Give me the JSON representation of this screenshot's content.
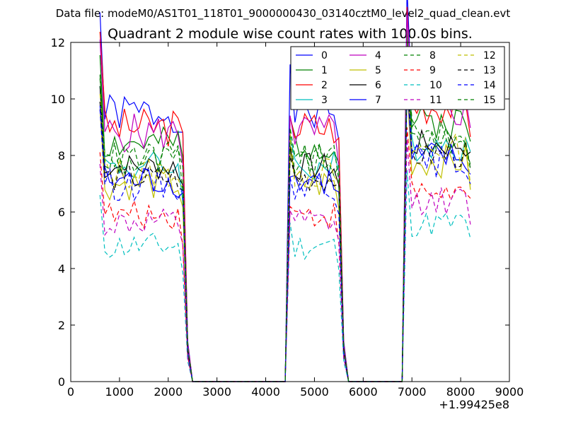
{
  "chart_data": {
    "type": "line",
    "suptitle": "Data file: modeM0/AS1T01_118T01_9000000430_03140cztM0_level2_quad_clean.evt",
    "title": "Quadrant 2 module wise count rates with 100.0s bins.",
    "xlabel": "",
    "ylabel": "",
    "x_offset_label": "+1.99425e8",
    "xlim": [
      0,
      9000
    ],
    "ylim": [
      0,
      12
    ],
    "xticks": [
      "0",
      "1000",
      "2000",
      "3000",
      "4000",
      "5000",
      "6000",
      "7000",
      "8000",
      "9000"
    ],
    "yticks": [
      "0",
      "2",
      "4",
      "6",
      "8",
      "10",
      "12"
    ],
    "grid": false,
    "legend_position": "top-right",
    "x": [
      600,
      700,
      800,
      900,
      1000,
      1100,
      1200,
      1300,
      1400,
      1500,
      1600,
      1700,
      1800,
      1900,
      2000,
      2100,
      2200,
      2300,
      2400,
      2500,
      2600,
      2700,
      2800,
      2900,
      3000,
      3100,
      3200,
      3300,
      3400,
      3500,
      3600,
      3700,
      3800,
      3900,
      4000,
      4100,
      4200,
      4300,
      4400,
      4500,
      4600,
      4700,
      4800,
      4900,
      5000,
      5100,
      5200,
      5300,
      5400,
      5500,
      5600,
      5700,
      5800,
      5900,
      6000,
      6100,
      6200,
      6300,
      6400,
      6500,
      6600,
      6700,
      6800,
      6900,
      7000,
      7100,
      7200,
      7300,
      7400,
      7500,
      7600,
      7700,
      7800,
      7900,
      8000,
      8100,
      8200
    ],
    "series": [
      {
        "name": "0",
        "color": "#0000ff",
        "dash": "solid",
        "base": 9.5,
        "amp": 0.7,
        "seed": 1
      },
      {
        "name": "1",
        "color": "#008000",
        "dash": "solid",
        "base": 8.4,
        "amp": 0.6,
        "seed": 2
      },
      {
        "name": "2",
        "color": "#ff0000",
        "dash": "solid",
        "base": 9.0,
        "amp": 0.7,
        "seed": 3
      },
      {
        "name": "3",
        "color": "#00bfbf",
        "dash": "solid",
        "base": 7.6,
        "amp": 0.6,
        "seed": 4
      },
      {
        "name": "4",
        "color": "#bf00bf",
        "dash": "solid",
        "base": 8.8,
        "amp": 0.7,
        "seed": 5
      },
      {
        "name": "5",
        "color": "#bfbf00",
        "dash": "solid",
        "base": 7.0,
        "amp": 0.6,
        "seed": 6
      },
      {
        "name": "6",
        "color": "#000000",
        "dash": "solid",
        "base": 7.6,
        "amp": 0.5,
        "seed": 7
      },
      {
        "name": "7",
        "color": "#0000ff",
        "dash": "solid",
        "base": 7.1,
        "amp": 0.6,
        "seed": 8
      },
      {
        "name": "8",
        "color": "#008000",
        "dash": "dashed",
        "base": 7.8,
        "amp": 0.6,
        "seed": 9
      },
      {
        "name": "9",
        "color": "#ff0000",
        "dash": "dashed",
        "base": 5.9,
        "amp": 0.5,
        "seed": 10
      },
      {
        "name": "10",
        "color": "#00bfbf",
        "dash": "dashed",
        "base": 4.8,
        "amp": 0.5,
        "seed": 11
      },
      {
        "name": "11",
        "color": "#bf00bf",
        "dash": "dashed",
        "base": 5.6,
        "amp": 0.5,
        "seed": 12
      },
      {
        "name": "12",
        "color": "#bfbf00",
        "dash": "dashed",
        "base": 7.4,
        "amp": 0.6,
        "seed": 13
      },
      {
        "name": "13",
        "color": "#000000",
        "dash": "dashed",
        "base": 7.2,
        "amp": 0.5,
        "seed": 14
      },
      {
        "name": "14",
        "color": "#0000ff",
        "dash": "dashed",
        "base": 7.0,
        "amp": 0.6,
        "seed": 15
      },
      {
        "name": "15",
        "color": "#008000",
        "dash": "dashed",
        "base": 7.9,
        "amp": 0.6,
        "seed": 16
      }
    ],
    "active_intervals": [
      [
        600,
        2300
      ],
      [
        4500,
        5500
      ],
      [
        6900,
        8200
      ]
    ]
  }
}
